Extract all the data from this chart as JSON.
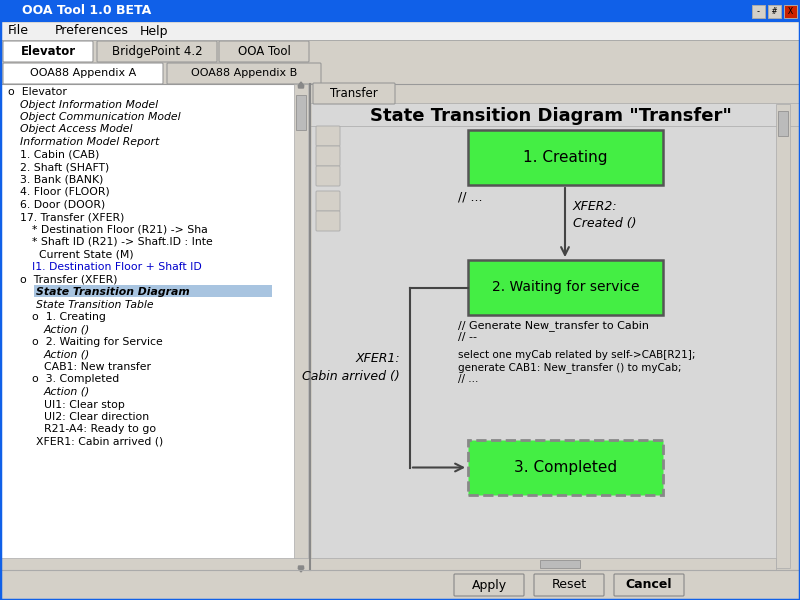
{
  "window_title": "OOA Tool 1.0 BETA",
  "titlebar_color": "#1060e8",
  "titlebar_text_color": "#ffffff",
  "menu_items": [
    "File",
    "Preferences",
    "Help"
  ],
  "tabs_row1": [
    "Elevator",
    "BridgePoint 4.2",
    "OOA Tool"
  ],
  "tabs_row2": [
    "OOA88 Appendix A",
    "OOA88 Appendix B"
  ],
  "bg_color": "#d4d0c8",
  "left_panel_bg": "#ffffff",
  "right_panel_bg": "#d4d0c8",
  "diagram_bg": "#d4d0c8",
  "diagram_title": "State Transition Diagram \"Transfer\"",
  "tab_transfer_label": "Transfer",
  "state1_label": "1. Creating",
  "state2_label": "2. Waiting for service",
  "state3_label": "3. Completed",
  "state_fill": "#44ee44",
  "state_border_solid": "#555555",
  "state_border_dashed": "#888888",
  "arrow_color": "#444444",
  "text_action1": "// ...",
  "text_xfer2": "XFER2:\nCreated ()",
  "text_action2a": "// Generate New_transfer to Cabin",
  "text_action2b": "// --",
  "text_action2c": "select one myCab related by self->CAB[R21];",
  "text_action2d": "generate CAB1: New_transfer () to myCab;",
  "text_action2e": "// ...",
  "text_xfer1": "XFER1:\nCabin arrived ()",
  "bottom_buttons": [
    "Apply",
    "Reset",
    "Cancel"
  ],
  "tree_items": [
    [
      8,
      "o  Elevator"
    ],
    [
      20,
      "Object Information Model"
    ],
    [
      20,
      "Object Communication Model"
    ],
    [
      20,
      "Object Access Model"
    ],
    [
      20,
      "Information Model Report"
    ],
    [
      20,
      "1. Cabin (CAB)"
    ],
    [
      20,
      "2. Shaft (SHAFT)"
    ],
    [
      20,
      "3. Bank (BANK)"
    ],
    [
      20,
      "4. Floor (FLOOR)"
    ],
    [
      20,
      "6. Door (DOOR)"
    ],
    [
      20,
      "17. Transfer (XFER)"
    ],
    [
      32,
      "* Destination Floor (R21) -> Sha"
    ],
    [
      32,
      "* Shaft ID (R21) -> Shaft.ID : Inte"
    ],
    [
      32,
      "  Current State (M)"
    ],
    [
      32,
      "I1. Destination Floor + Shaft ID"
    ],
    [
      20,
      "o  Transfer (XFER)"
    ],
    [
      36,
      "State Transition Diagram"
    ],
    [
      36,
      "State Transition Table"
    ],
    [
      32,
      "o  1. Creating"
    ],
    [
      44,
      "Action ()"
    ],
    [
      32,
      "o  2. Waiting for Service"
    ],
    [
      44,
      "Action ()"
    ],
    [
      44,
      "CAB1: New transfer"
    ],
    [
      32,
      "o  3. Completed"
    ],
    [
      44,
      "Action ()"
    ],
    [
      44,
      "UI1: Clear stop"
    ],
    [
      44,
      "UI2: Clear direction"
    ],
    [
      44,
      "R21-A4: Ready to go"
    ],
    [
      36,
      "XFER1: Cabin arrived ()"
    ]
  ]
}
